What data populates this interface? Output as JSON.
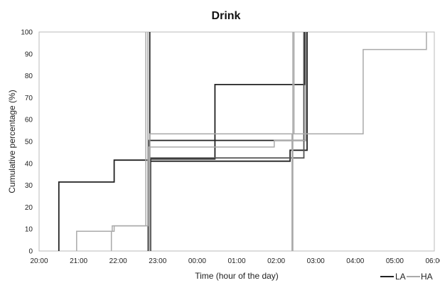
{
  "chart_data": {
    "type": "line",
    "title": "Drink",
    "xlabel": "Time (hour of the day)",
    "ylabel": "Cumulative percentage (%)",
    "x_ticks": [
      "20:00",
      "21:00",
      "22:00",
      "23:00",
      "00:00",
      "01:00",
      "02:00",
      "03:00",
      "04:00",
      "05:00",
      "06:00"
    ],
    "y_ticks": [
      "0",
      "10",
      "20",
      "30",
      "40",
      "50",
      "60",
      "70",
      "80",
      "90",
      "100"
    ],
    "xlim": [
      0,
      10
    ],
    "ylim": [
      0,
      100
    ],
    "grid": false,
    "legend_position": "bottom-right",
    "legend": [
      {
        "label": "LA",
        "color": "#222222"
      },
      {
        "label": "HA",
        "color": "#aaaaaa"
      }
    ],
    "series": [
      {
        "group": "LA",
        "color": "#222222",
        "points": [
          [
            0.5,
            0
          ],
          [
            0.5,
            31.5
          ],
          [
            1.9,
            31.5
          ],
          [
            1.9,
            41.5
          ],
          [
            2.8,
            41.5
          ],
          [
            2.8,
            100
          ]
        ]
      },
      {
        "group": "LA",
        "color": "#222222",
        "points": [
          [
            2.78,
            0
          ],
          [
            2.78,
            50.5
          ],
          [
            6.75,
            50.5
          ],
          [
            6.75,
            100
          ]
        ]
      },
      {
        "group": "LA",
        "color": "#222222",
        "points": [
          [
            2.82,
            0
          ],
          [
            2.82,
            42
          ],
          [
            4.45,
            42
          ],
          [
            4.45,
            76
          ],
          [
            6.72,
            76
          ],
          [
            6.72,
            100
          ]
        ]
      },
      {
        "group": "LA",
        "color": "#222222",
        "points": [
          [
            2.76,
            0
          ],
          [
            2.76,
            41
          ],
          [
            6.35,
            41
          ],
          [
            6.35,
            46
          ],
          [
            6.78,
            46
          ],
          [
            6.78,
            100
          ]
        ]
      },
      {
        "group": "LA",
        "color": "#555555",
        "points": [
          [
            2.8,
            0
          ],
          [
            2.8,
            42.5
          ],
          [
            6.7,
            42.5
          ],
          [
            6.7,
            100
          ]
        ]
      },
      {
        "group": "HA",
        "color": "#aaaaaa",
        "points": [
          [
            0.95,
            0
          ],
          [
            0.95,
            9
          ],
          [
            1.85,
            9
          ],
          [
            1.85,
            11.5
          ],
          [
            2.75,
            11.5
          ],
          [
            2.75,
            100
          ]
        ]
      },
      {
        "group": "HA",
        "color": "#aaaaaa",
        "points": [
          [
            2.8,
            0
          ],
          [
            2.8,
            53.5
          ],
          [
            6.45,
            53.5
          ],
          [
            6.45,
            100
          ]
        ]
      },
      {
        "group": "HA",
        "color": "#aaaaaa",
        "points": [
          [
            2.78,
            0
          ],
          [
            2.78,
            47.5
          ],
          [
            5.95,
            47.5
          ],
          [
            5.95,
            50.5
          ],
          [
            6.75,
            50.5
          ],
          [
            6.75,
            100
          ]
        ]
      },
      {
        "group": "HA",
        "color": "#aaaaaa",
        "points": [
          [
            6.42,
            0
          ],
          [
            6.42,
            100
          ]
        ]
      },
      {
        "group": "HA",
        "color": "#aaaaaa",
        "points": [
          [
            6.4,
            0
          ],
          [
            6.4,
            53.5
          ],
          [
            8.2,
            53.5
          ],
          [
            8.2,
            92
          ],
          [
            9.8,
            92
          ],
          [
            9.8,
            100
          ]
        ]
      },
      {
        "group": "HA",
        "color": "#aaaaaa",
        "points": [
          [
            1.83,
            0
          ],
          [
            1.83,
            9
          ],
          [
            1.9,
            9
          ],
          [
            1.9,
            11.5
          ],
          [
            2.7,
            11.5
          ],
          [
            2.7,
            100
          ]
        ]
      }
    ]
  }
}
